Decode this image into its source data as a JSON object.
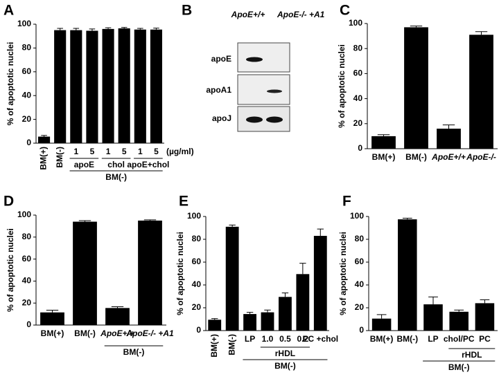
{
  "chart_data": [
    {
      "type": "bar",
      "label": "A",
      "ylabel": "% of apoptotic nuclei",
      "categories": [
        "BM(+)",
        "BM(-)",
        "1",
        "5",
        "1",
        "5",
        "1",
        "5"
      ],
      "values": [
        5.5,
        95,
        95,
        94.5,
        96,
        96.5,
        95.5,
        95.5
      ],
      "errors": [
        1,
        1.5,
        1.5,
        1.5,
        1,
        0.8,
        1,
        1.2
      ],
      "groups": [
        {
          "label": "apoE"
        },
        {
          "label": "chol"
        },
        {
          "label": "apoE+chol"
        },
        {
          "label": "BM(-)"
        }
      ],
      "annotation": "(µg/ml)",
      "color": "#000000",
      "ylim": [
        0,
        100
      ],
      "yticks": [
        0,
        20,
        40,
        60,
        80,
        100
      ]
    },
    {
      "type": "bar",
      "label": "C",
      "ylabel": "% of apoptotic nuclei",
      "categories": [
        "BM(+)",
        "BM(-)",
        "ApoE+/+",
        "ApoE-/-"
      ],
      "values": [
        10,
        97,
        16,
        91
      ],
      "errors": [
        1.2,
        1,
        3,
        2.5
      ],
      "groups": [],
      "color": "#000000",
      "ylim": [
        0,
        100
      ],
      "yticks": [
        0,
        20,
        40,
        60,
        80,
        100
      ]
    },
    {
      "type": "bar",
      "label": "D",
      "ylabel": "% of apoptotic nuclei",
      "categories": [
        "BM(+)",
        "BM(-)",
        "ApoE+/+",
        "ApoE-/- +A1"
      ],
      "values": [
        11.5,
        94,
        15.5,
        95
      ],
      "errors": [
        2,
        1,
        1.2,
        0.7
      ],
      "groups": [
        {
          "label": "BM(-)"
        }
      ],
      "color": "#000000",
      "ylim": [
        0,
        100
      ],
      "yticks": [
        0,
        20,
        40,
        60,
        80,
        100
      ]
    },
    {
      "type": "bar",
      "label": "E",
      "ylabel": "% of apoptotic nuclei",
      "categories": [
        "BM(+)",
        "BM(-)",
        "LP",
        "1.0",
        "0.5",
        "0.2",
        "PC +chol"
      ],
      "values": [
        9.5,
        91,
        14.5,
        16,
        29.5,
        49.5,
        83
      ],
      "errors": [
        1,
        1.5,
        1.5,
        2,
        3.5,
        9.5,
        6
      ],
      "groups": [
        {
          "label": "rHDL"
        },
        {
          "label": "BM(-)"
        }
      ],
      "color": "#000000",
      "ylim": [
        0,
        100
      ],
      "yticks": [
        0,
        20,
        40,
        60,
        80,
        100
      ]
    },
    {
      "type": "bar",
      "label": "F",
      "ylabel": "% of apoptotic nuclei",
      "categories": [
        "BM(+)",
        "BM(-)",
        "LP",
        "chol/PC",
        "PC"
      ],
      "values": [
        10.5,
        97.5,
        23,
        16.5,
        24
      ],
      "errors": [
        3.5,
        1,
        6.5,
        1.5,
        3
      ],
      "groups": [
        {
          "label": "rHDL"
        },
        {
          "label": "BM(-)"
        }
      ],
      "color": "#000000",
      "ylim": [
        0,
        100
      ],
      "yticks": [
        0,
        20,
        40,
        60,
        80,
        100
      ]
    }
  ],
  "blot": {
    "label": "B",
    "columns": [
      "ApoE+/+",
      "ApoE-/- +A1"
    ],
    "rows": [
      "apoE",
      "apoA1",
      "apoJ"
    ]
  }
}
